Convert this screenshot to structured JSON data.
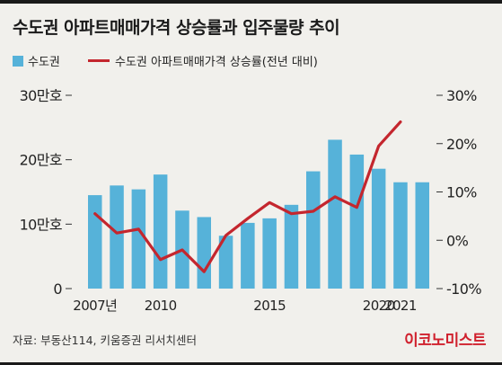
{
  "title": "수도권 아파트매매가격 상승률과 입주물량 추이",
  "legend": {
    "bar_label": "수도권",
    "line_label": "수도권 아파트매매가격 상승률(전년 대비)"
  },
  "source": "자료: 부동산114, 키움증권 리서치센터",
  "logo": "이코노미스트",
  "colors": {
    "bar": "#56b2d9",
    "line": "#c4262e",
    "axis": "#333333",
    "background": "#f1f0ec"
  },
  "chart_data": {
    "type": "bar",
    "title": "수도권 아파트매매가격 상승률과 입주물량 추이",
    "x": [
      2007,
      2008,
      2009,
      2010,
      2011,
      2012,
      2013,
      2014,
      2015,
      2016,
      2017,
      2018,
      2019,
      2020,
      2021,
      2022
    ],
    "x_tick_labels": [
      {
        "year": 2007,
        "label": "2007년"
      },
      {
        "year": 2010,
        "label": "2010"
      },
      {
        "year": 2015,
        "label": "2015"
      },
      {
        "year": 2020,
        "label": "2020"
      },
      {
        "year": 2021,
        "label": "2021"
      }
    ],
    "series": [
      {
        "name": "수도권",
        "type": "bar",
        "axis": "left",
        "values": [
          14.5,
          16.0,
          15.4,
          17.7,
          12.1,
          11.1,
          8.2,
          10.2,
          10.9,
          13.0,
          18.2,
          23.1,
          20.8,
          18.6,
          16.5,
          16.5
        ]
      },
      {
        "name": "수도권 아파트매매가격 상승률(전년 대비)",
        "type": "line",
        "axis": "right",
        "x": [
          2007,
          2008,
          2009,
          2010,
          2011,
          2012,
          2013,
          2014,
          2015,
          2016,
          2017,
          2018,
          2019,
          2020,
          2021
        ],
        "values": [
          5.5,
          1.5,
          2.3,
          -4.0,
          -2.0,
          -6.5,
          1.0,
          4.5,
          7.8,
          5.5,
          6.0,
          9.0,
          6.8,
          19.5,
          24.5
        ]
      }
    ],
    "left_axis": {
      "ylim": [
        0,
        30
      ],
      "ticks": [
        0,
        10,
        20,
        30
      ],
      "tick_labels": [
        "0",
        "10만호",
        "20만호",
        "30만호"
      ]
    },
    "right_axis": {
      "ylim": [
        -10,
        30
      ],
      "ticks": [
        -10,
        0,
        10,
        20,
        30
      ],
      "tick_labels": [
        "-10%",
        "0%",
        "10%",
        "20%",
        "30%"
      ]
    },
    "grid": false
  }
}
